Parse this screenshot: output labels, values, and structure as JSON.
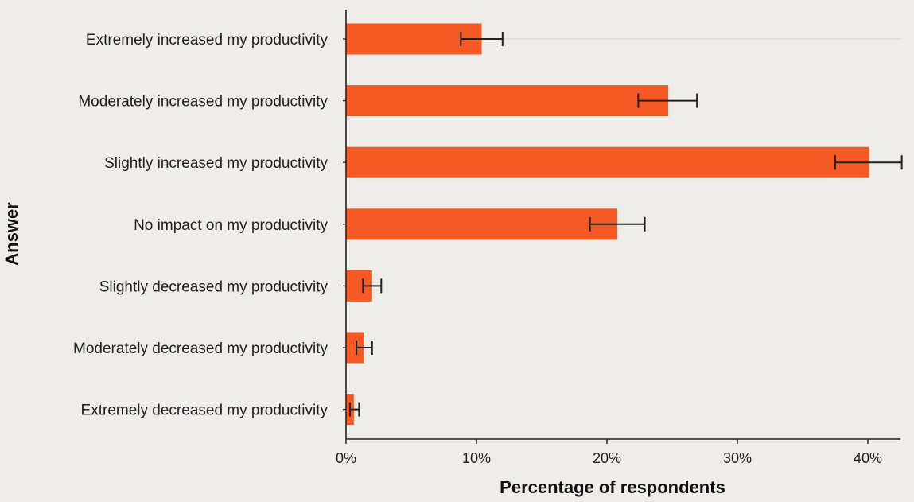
{
  "chart_data": {
    "type": "bar",
    "orientation": "horizontal",
    "xlabel": "Percentage of respondents",
    "ylabel": "Answer",
    "xlim": [
      0,
      42.5
    ],
    "xticks": [
      0,
      10,
      20,
      30,
      40
    ],
    "xtick_labels": [
      "0%",
      "10%",
      "20%",
      "30%",
      "40%"
    ],
    "categories": [
      "Extremely increased my productivity",
      "Moderately increased my productivity",
      "Slightly increased my productivity",
      "No impact on my productivity",
      "Slightly decreased my productivity",
      "Moderately decreased my productivity",
      "Extremely decreased my productivity"
    ],
    "values": [
      10.4,
      24.7,
      40.1,
      20.8,
      2.0,
      1.4,
      0.6
    ],
    "error_low": [
      8.8,
      22.4,
      37.5,
      18.7,
      1.3,
      0.8,
      0.3
    ],
    "error_high": [
      12.0,
      26.9,
      42.6,
      22.9,
      2.7,
      2.0,
      1.0
    ],
    "bar_color": "#f55a24",
    "error_color": "#222222",
    "background_color": "#efede9",
    "grid": false
  }
}
